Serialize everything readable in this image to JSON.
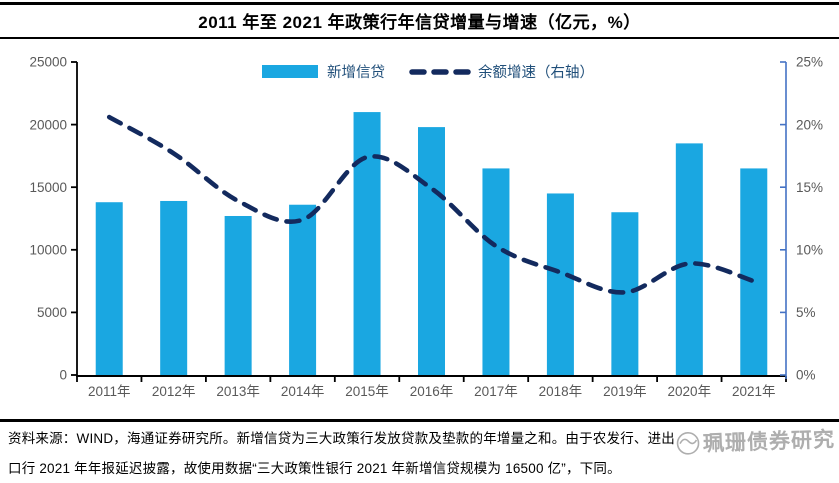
{
  "title": "2011 年至 2021 年政策行年信贷增量与增速（亿元，%）",
  "chart_data": {
    "type": "bar",
    "title": "2011 年至 2021 年政策行年信贷增量与增速（亿元，%）",
    "categories": [
      "2011年",
      "2012年",
      "2013年",
      "2014年",
      "2015年",
      "2016年",
      "2017年",
      "2018年",
      "2019年",
      "2020年",
      "2021年"
    ],
    "series": [
      {
        "name": "新增信贷",
        "type": "bar",
        "axis": "left",
        "values": [
          13800,
          13900,
          12700,
          13600,
          21000,
          19800,
          16500,
          14500,
          13000,
          18500,
          16500
        ]
      },
      {
        "name": "余额增速（右轴）",
        "type": "line",
        "axis": "right",
        "values": [
          20.6,
          17.7,
          13.9,
          12.4,
          17.4,
          14.9,
          10.3,
          8.2,
          6.6,
          8.9,
          7.5
        ]
      }
    ],
    "left_axis": {
      "min": 0,
      "max": 25000,
      "step": 5000,
      "tick_labels": [
        "0",
        "5000",
        "10000",
        "15000",
        "20000",
        "25000"
      ]
    },
    "right_axis": {
      "min": 0,
      "max": 25,
      "step": 5,
      "tick_labels": [
        "0%",
        "5%",
        "10%",
        "15%",
        "20%",
        "25%"
      ]
    },
    "grid": false,
    "legend_position": "top-center"
  },
  "footer": {
    "line1": "资料来源：WIND，海通证券研究所。新增信贷为三大政策行发放贷款及垫款的年增量之和。由于农发行、进出",
    "line2": "口行 2021 年年报延迟披露，故使用数据“三大政策性银行 2021 年新增信贷规模为 16500 亿”，下同。",
    "watermark": "珮珊债券研究"
  },
  "colors": {
    "bar": "#1AA7E1",
    "line": "#132A5E",
    "right_axis": "#4472C4",
    "axis": "#000000",
    "tick_text": "#595959",
    "legend_text": "#1F4E79",
    "rule": "#000000",
    "watermark": "#8f8f8f"
  }
}
